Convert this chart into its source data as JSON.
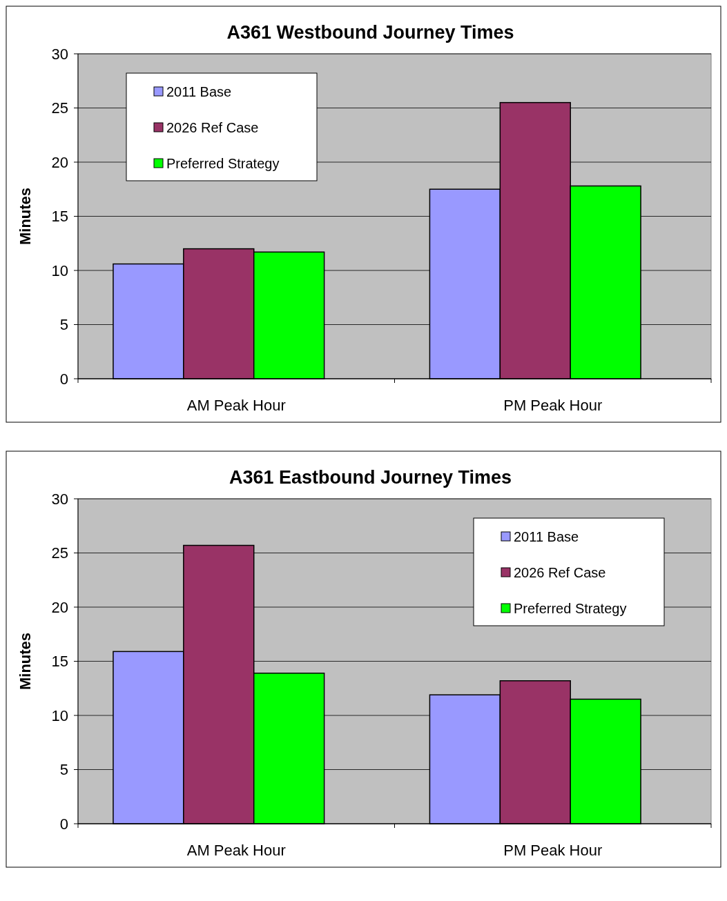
{
  "chart_data": [
    {
      "type": "bar",
      "title": "A361 Westbound Journey Times",
      "ylabel": "Minutes",
      "categories": [
        "AM Peak Hour",
        "PM Peak Hour"
      ],
      "series": [
        {
          "name": "2011 Base",
          "color": "#9999ff",
          "values": [
            10.6,
            17.5
          ]
        },
        {
          "name": "2026 Ref Case",
          "color": "#993366",
          "values": [
            12.0,
            25.5
          ]
        },
        {
          "name": "Preferred Strategy",
          "color": "#00ff00",
          "values": [
            11.7,
            17.8
          ]
        }
      ],
      "ylim": [
        0,
        30
      ],
      "yticks": [
        0,
        5,
        10,
        15,
        20,
        25,
        30
      ],
      "grid": "y",
      "legend": "top left"
    },
    {
      "type": "bar",
      "title": "A361 Eastbound Journey Times",
      "ylabel": "Minutes",
      "categories": [
        "AM Peak Hour",
        "PM Peak Hour"
      ],
      "series": [
        {
          "name": "2011 Base",
          "color": "#9999ff",
          "values": [
            15.9,
            11.9
          ]
        },
        {
          "name": "2026 Ref Case",
          "color": "#993366",
          "values": [
            25.7,
            13.2
          ]
        },
        {
          "name": "Preferred Strategy",
          "color": "#00ff00",
          "values": [
            13.9,
            11.5
          ]
        }
      ],
      "ylim": [
        0,
        30
      ],
      "yticks": [
        0,
        5,
        10,
        15,
        20,
        25,
        30
      ],
      "grid": "y",
      "legend": "top right"
    }
  ]
}
